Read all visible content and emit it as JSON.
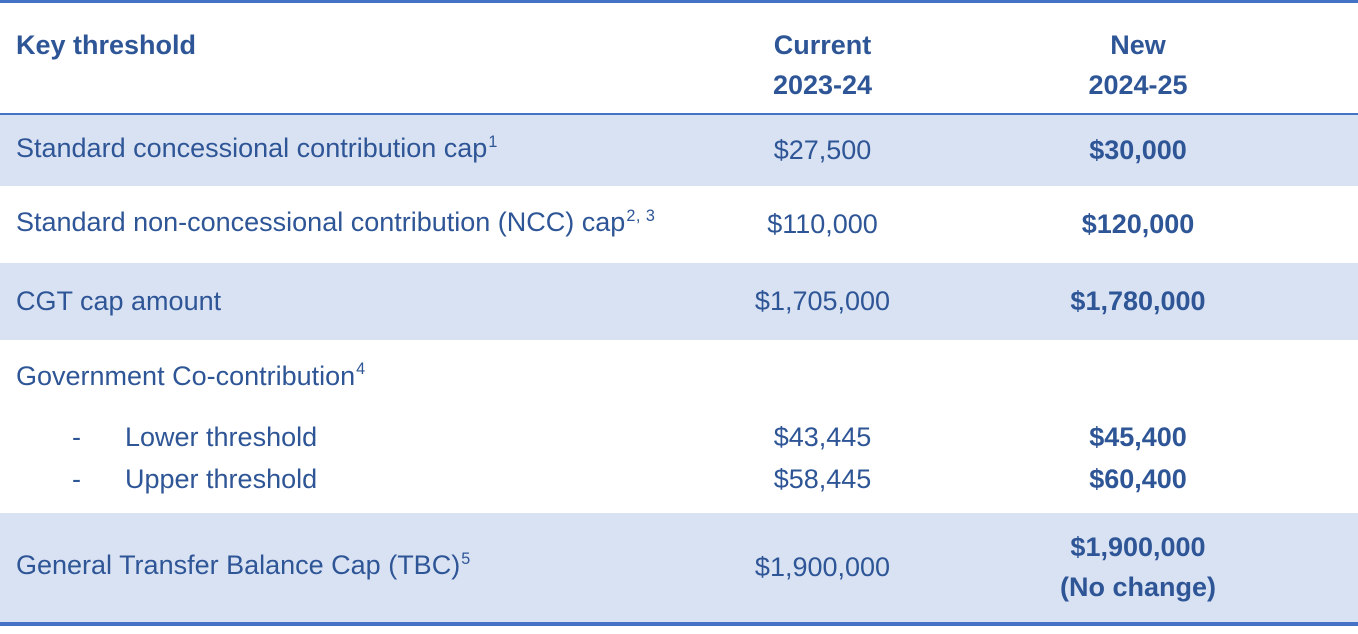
{
  "colors": {
    "text_blue": "#2E5596",
    "row_shade_blue": "#D9E2F3",
    "rule_blue": "#4472C4",
    "background": "#ffffff"
  },
  "table": {
    "header": {
      "key_threshold": "Key threshold",
      "current_line1": "Current",
      "current_line2": "2023-24",
      "new_line1": "New",
      "new_line2": "2024-25"
    },
    "rows": {
      "concessional": {
        "label": "Standard concessional contribution cap",
        "sup": "1",
        "current": "$27,500",
        "new": "$30,000"
      },
      "ncc": {
        "label": "Standard non-concessional contribution (NCC) cap",
        "sup": "2, 3",
        "current": "$110,000",
        "new": "$120,000"
      },
      "cgt": {
        "label": "CGT cap amount",
        "current": "$1,705,000",
        "new": "$1,780,000"
      },
      "co_contribution": {
        "label": "Government Co-contribution",
        "sup": "4",
        "lower": {
          "bullet": "-",
          "label": "Lower threshold",
          "current": "$43,445",
          "new": "$45,400"
        },
        "upper": {
          "bullet": "-",
          "label": "Upper threshold",
          "current": "$58,445",
          "new": "$60,400"
        }
      },
      "tbc": {
        "label": "General Transfer Balance Cap (TBC)",
        "sup": "5",
        "current": "$1,900,000",
        "new": "$1,900,000",
        "new_note": "(No change)"
      }
    }
  }
}
